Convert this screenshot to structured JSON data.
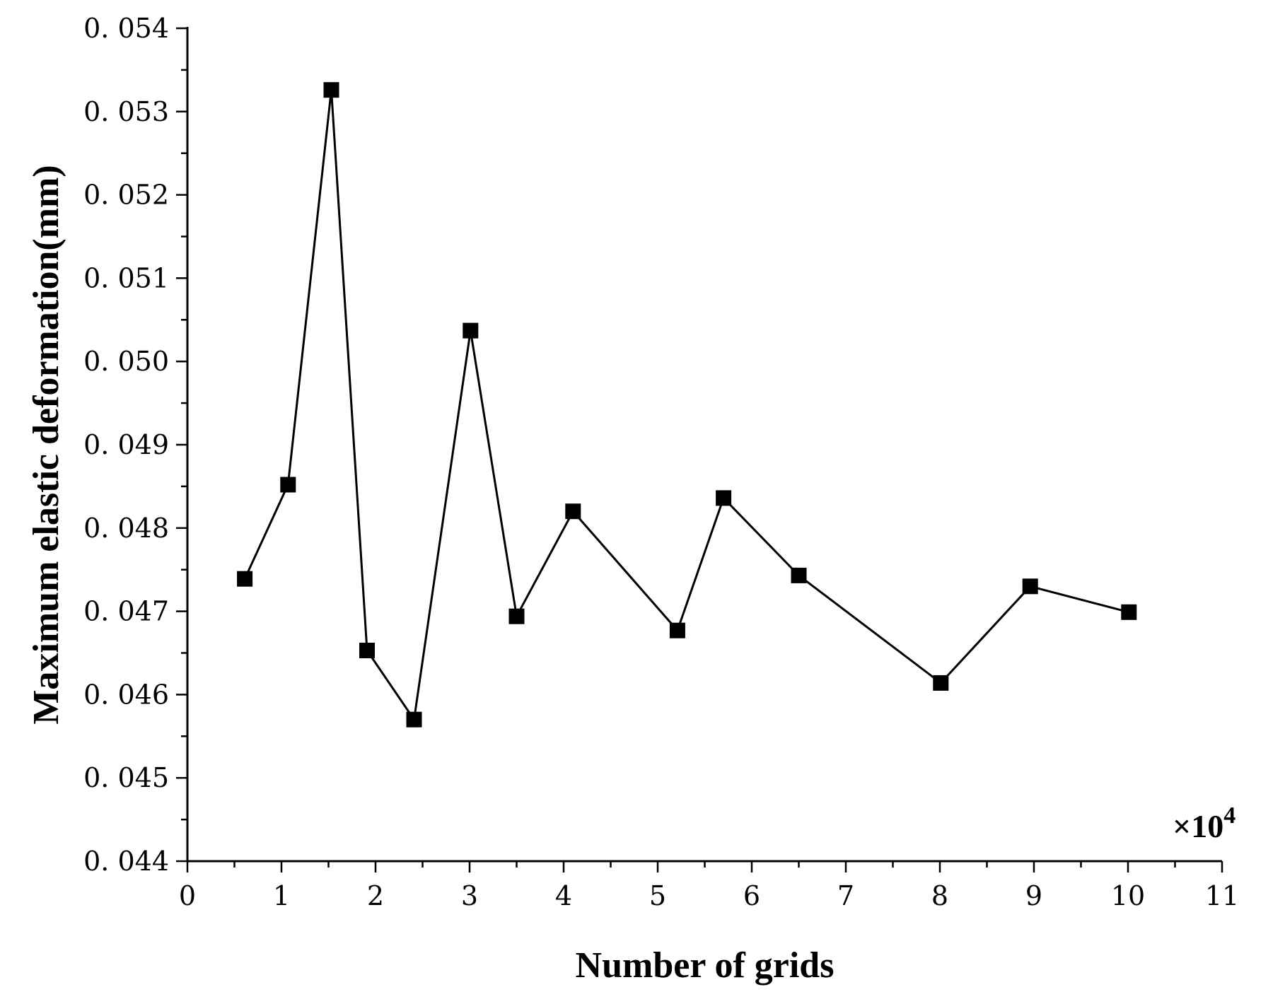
{
  "chart_data": {
    "type": "line",
    "xlabel": "Number of grids",
    "ylabel": "Maximum elastic deformation(mm)",
    "x_multiplier_label": "×10",
    "x_multiplier_exp": "4",
    "xlim": [
      0,
      11
    ],
    "ylim": [
      0.044,
      0.054
    ],
    "x_ticks": [
      0,
      1,
      2,
      3,
      4,
      5,
      6,
      7,
      8,
      9,
      10,
      11
    ],
    "x_tick_labels": [
      "0",
      "1",
      "2",
      "3",
      "4",
      "5",
      "6",
      "7",
      "8",
      "9",
      "10",
      "11"
    ],
    "y_ticks": [
      0.044,
      0.045,
      0.046,
      0.047,
      0.048,
      0.049,
      0.05,
      0.051,
      0.052,
      0.053,
      0.054
    ],
    "y_tick_labels": [
      "0. 044",
      "0. 045",
      "0. 046",
      "0. 047",
      "0. 048",
      "0. 049",
      "0. 050",
      "0. 051",
      "0. 052",
      "0. 053",
      "0. 054"
    ],
    "grid": false,
    "legend": "none",
    "marker": "square",
    "color": "#000000",
    "series": [
      {
        "x": [
          0.61,
          1.07,
          1.53,
          1.91,
          2.41,
          3.01,
          3.5,
          4.1,
          5.21,
          5.7,
          6.5,
          8.01,
          8.96,
          10.01
        ],
        "y": [
          0.04739,
          0.04852,
          0.05326,
          0.04653,
          0.0457,
          0.05037,
          0.04694,
          0.0482,
          0.04677,
          0.04836,
          0.04743,
          0.04614,
          0.0473,
          0.04699
        ]
      }
    ]
  }
}
